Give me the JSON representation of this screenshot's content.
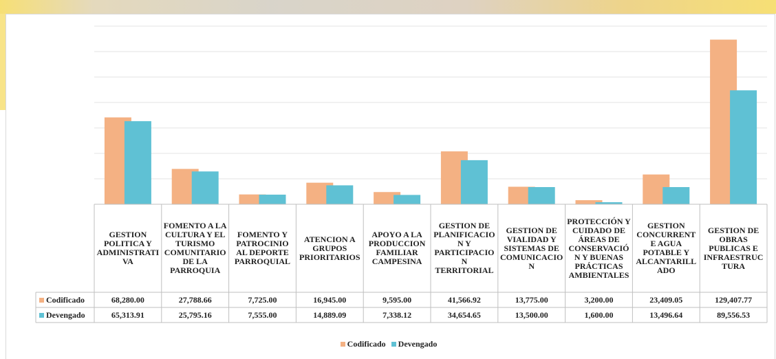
{
  "chart_data": {
    "type": "bar",
    "categories": [
      "GESTION POLITICA Y ADMINISTRATIVA",
      "FOMENTO A LA CULTURA Y EL TURISMO COMUNITARIO DE LA PARROQUIA",
      "FOMENTO Y PATROCINIO AL DEPORTE PARROQUIAL",
      "ATENCION A GRUPOS PRIORITARIOS",
      "APOYO A LA PRODUCCION FAMILIAR CAMPESINA",
      "GESTION DE PLANIFICACION Y PARTICIPACION TERRITORIAL",
      "GESTION DE VIALIDAD Y SISTEMAS DE COMUNICACION",
      "PROTECCIÓN Y CUIDADO DE ÁREAS DE CONSERVACIÓN Y BUENAS PRÁCTICAS AMBIENTALES",
      "GESTION CONCURRENTE AGUA POTABLE Y ALCANTARILLADO",
      "GESTION DE OBRAS PUBLICAS E INFRAESTRUCTURA"
    ],
    "series": [
      {
        "name": "Codificado",
        "color": "#f4b183",
        "values": [
          68280.0,
          27788.66,
          7725.0,
          16945.0,
          9595.0,
          41566.92,
          13775.0,
          3200.0,
          23409.05,
          129407.77
        ],
        "value_labels": [
          "68,280.00",
          "27,788.66",
          "7,725.00",
          "16,945.00",
          "9,595.00",
          "41,566.92",
          "13,775.00",
          "3,200.00",
          "23,409.05",
          "129,407.77"
        ]
      },
      {
        "name": "Devengado",
        "color": "#5fc1d4",
        "values": [
          65313.91,
          25795.16,
          7555.0,
          14889.09,
          7338.12,
          34654.65,
          13500.0,
          1600.0,
          13496.64,
          89556.53
        ],
        "value_labels": [
          "65,313.91",
          "25,795.16",
          "7,555.00",
          "14,889.09",
          "7,338.12",
          "34,654.65",
          "13,500.00",
          "1,600.00",
          "13,496.64",
          "89,556.53"
        ]
      }
    ],
    "ylim": [
      0,
      140000
    ],
    "yticks": [
      0,
      20000,
      40000,
      60000,
      80000,
      100000,
      120000,
      140000
    ],
    "grid": true
  }
}
